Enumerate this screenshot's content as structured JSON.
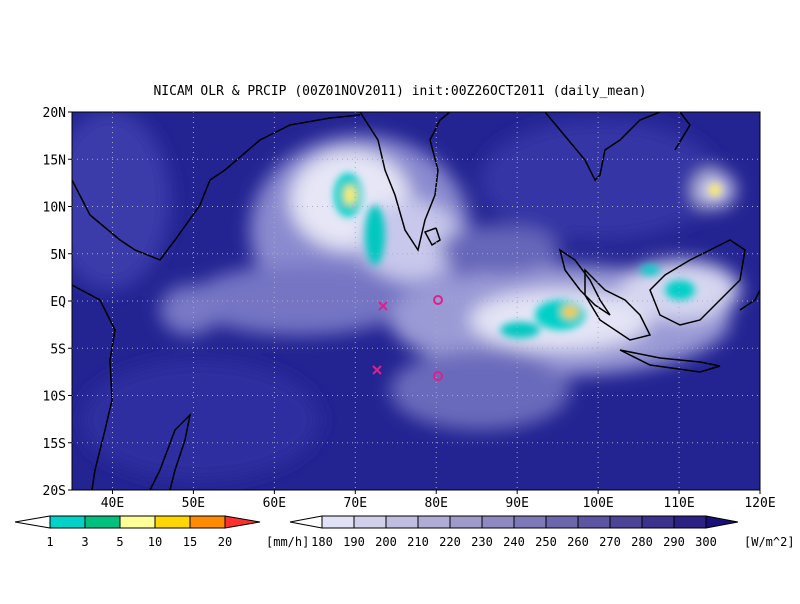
{
  "title": "NICAM OLR & PRCIP (00Z01NOV2011) init:00Z26OCT2011 (daily_mean)",
  "lat_labels": [
    "20N",
    "15N",
    "10N",
    "5N",
    "EQ",
    "5S",
    "10S",
    "15S",
    "20S"
  ],
  "lon_labels": [
    "40E",
    "50E",
    "60E",
    "70E",
    "80E",
    "90E",
    "100E",
    "110E",
    "120E"
  ],
  "precip_legend": {
    "labels": [
      "1",
      "3",
      "5",
      "10",
      "15",
      "20"
    ],
    "unit": "[mm/h]"
  },
  "olr_legend": {
    "labels": [
      "180",
      "190",
      "200",
      "210",
      "220",
      "230",
      "240",
      "250",
      "260",
      "270",
      "280",
      "290",
      "300"
    ],
    "unit": "[W/m^2]"
  }
}
